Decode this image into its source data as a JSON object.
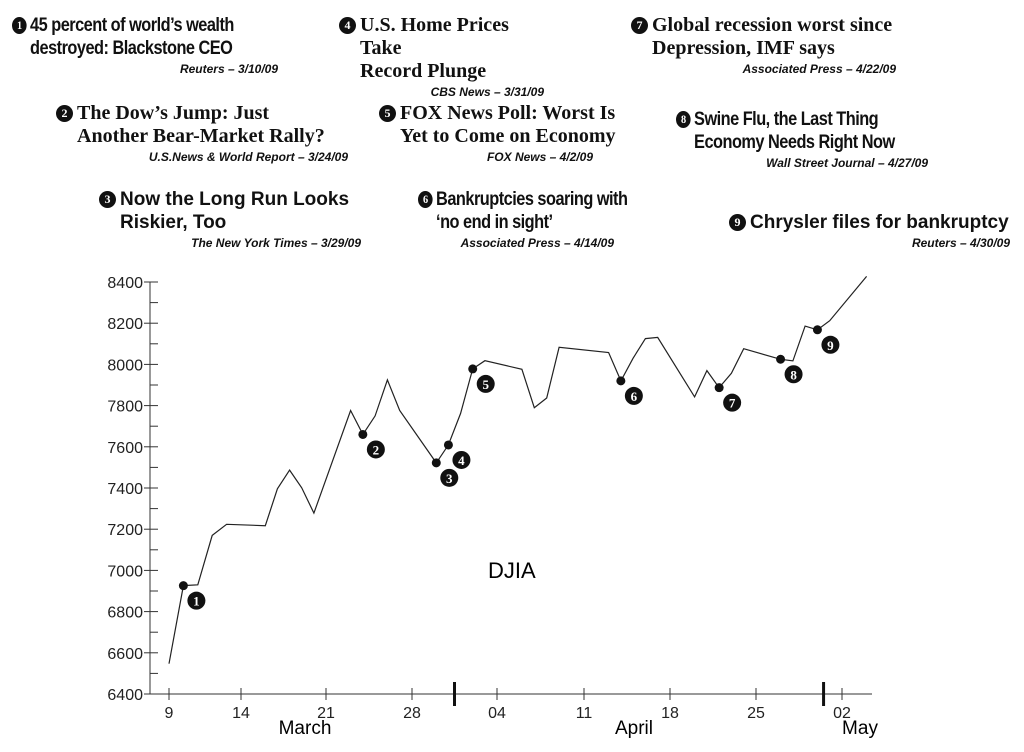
{
  "headlines": [
    {
      "num": "1",
      "line1": "45 percent of world’s wealth",
      "line2": "destroyed: Blackstone CEO",
      "source": "Reuters – 3/10/09"
    },
    {
      "num": "2",
      "line1": "The Dow’s Jump: Just",
      "line2": "Another Bear-Market Rally?",
      "source": "U.S.News & World Report – 3/24/09"
    },
    {
      "num": "3",
      "line1": "Now the Long Run Looks",
      "line2": "Riskier, Too",
      "source": "The New York Times – 3/29/09"
    },
    {
      "num": "4",
      "line1": "U.S. Home Prices Take",
      "line2": "Record Plunge",
      "source": "CBS News – 3/31/09"
    },
    {
      "num": "5",
      "line1": "FOX News Poll: Worst Is",
      "line2": "Yet to Come on Economy",
      "source": "FOX News – 4/2/09"
    },
    {
      "num": "6",
      "line1": "Bankruptcies soaring with",
      "line2": "‘no end in sight’",
      "source": "Associated Press – 4/14/09"
    },
    {
      "num": "7",
      "line1": "Global recession worst since",
      "line2": "Depression, IMF says",
      "source": "Associated Press – 4/22/09"
    },
    {
      "num": "8",
      "line1": "Swine Flu, the Last Thing",
      "line2": "Economy Needs Right Now",
      "source": "Wall Street Journal – 4/27/09"
    },
    {
      "num": "9",
      "line1": "Chrysler files for bankruptcy",
      "line2": "",
      "source": "Reuters – 4/30/09"
    }
  ],
  "chart_data": {
    "type": "line",
    "series_label": "DJIA",
    "x": [
      "2009-03-09",
      "2009-03-10",
      "2009-03-11",
      "2009-03-12",
      "2009-03-13",
      "2009-03-16",
      "2009-03-17",
      "2009-03-18",
      "2009-03-19",
      "2009-03-20",
      "2009-03-23",
      "2009-03-24",
      "2009-03-25",
      "2009-03-26",
      "2009-03-27",
      "2009-03-30",
      "2009-03-31",
      "2009-04-01",
      "2009-04-02",
      "2009-04-03",
      "2009-04-06",
      "2009-04-07",
      "2009-04-08",
      "2009-04-09",
      "2009-04-13",
      "2009-04-14",
      "2009-04-15",
      "2009-04-16",
      "2009-04-17",
      "2009-04-20",
      "2009-04-21",
      "2009-04-22",
      "2009-04-23",
      "2009-04-24",
      "2009-04-27",
      "2009-04-28",
      "2009-04-29",
      "2009-04-30",
      "2009-05-01",
      "2009-05-04"
    ],
    "y": [
      6547,
      6926,
      6930,
      7170,
      7224,
      7217,
      7396,
      7487,
      7401,
      7278,
      7776,
      7660,
      7750,
      7925,
      7776,
      7522,
      7609,
      7762,
      7978,
      8018,
      7976,
      7790,
      7837,
      8083,
      8058,
      7920,
      8030,
      8125,
      8131,
      7842,
      7970,
      7887,
      7957,
      8076,
      8025,
      8017,
      8186,
      8168,
      8212,
      8427
    ],
    "markers": [
      {
        "label": "1",
        "x": "2009-03-10"
      },
      {
        "label": "2",
        "x": "2009-03-24"
      },
      {
        "label": "3",
        "x": "2009-03-30"
      },
      {
        "label": "4",
        "x": "2009-03-31"
      },
      {
        "label": "5",
        "x": "2009-04-02"
      },
      {
        "label": "6",
        "x": "2009-04-14"
      },
      {
        "label": "7",
        "x": "2009-04-22"
      },
      {
        "label": "8",
        "x": "2009-04-27"
      },
      {
        "label": "9",
        "x": "2009-04-30"
      }
    ],
    "ylim": [
      6400,
      8400
    ],
    "yticks": [
      "6400",
      "6600",
      "6800",
      "7000",
      "7200",
      "7400",
      "7600",
      "7800",
      "8000",
      "8200",
      "8400"
    ],
    "xticks": [
      {
        "date": "2009-03-09",
        "label": "9"
      },
      {
        "date": "2009-03-14",
        "label": "14"
      },
      {
        "date": "2009-03-21",
        "label": "21"
      },
      {
        "date": "2009-03-28",
        "label": "28"
      },
      {
        "date": "2009-04-04",
        "label": "04"
      },
      {
        "date": "2009-04-11",
        "label": "11"
      },
      {
        "date": "2009-04-18",
        "label": "18"
      },
      {
        "date": "2009-04-25",
        "label": "25"
      },
      {
        "date": "2009-05-02",
        "label": "02"
      }
    ],
    "months": [
      "March",
      "April",
      "May"
    ],
    "grid": false
  }
}
